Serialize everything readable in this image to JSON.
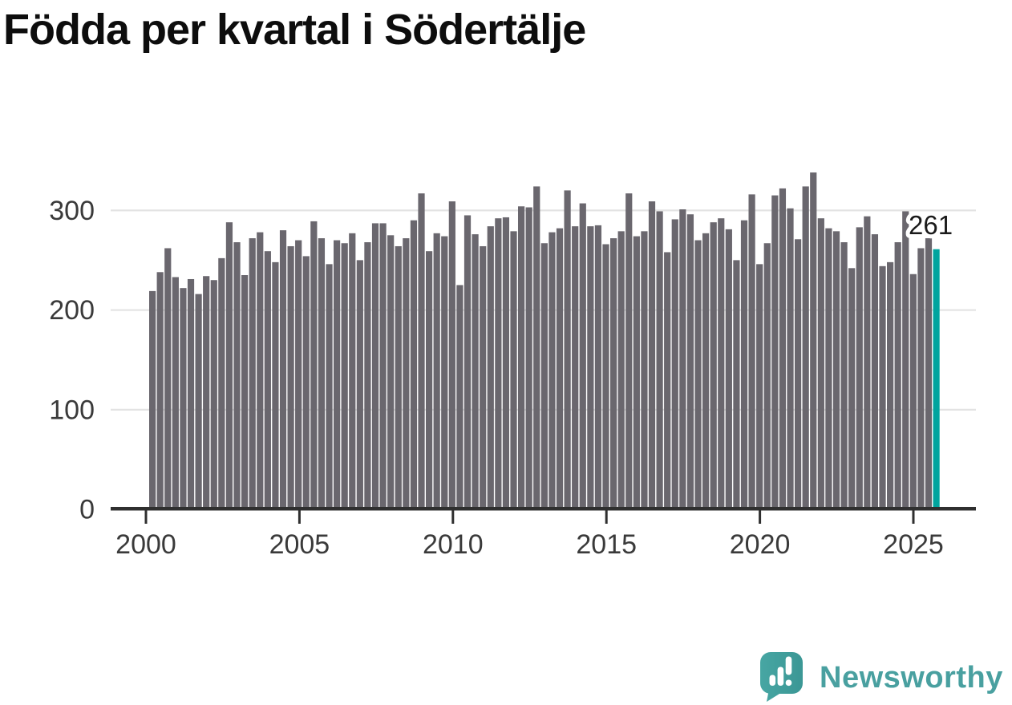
{
  "title": "Födda per kvartal i Södertälje",
  "chart_data": {
    "type": "bar",
    "title": "Födda per kvartal i Södertälje",
    "frequency": "quarterly",
    "x_start": "2000-Q1",
    "x_end": "2025-Q3",
    "values": [
      219,
      238,
      262,
      233,
      222,
      231,
      216,
      234,
      230,
      252,
      288,
      268,
      235,
      272,
      278,
      259,
      248,
      280,
      264,
      270,
      254,
      289,
      272,
      246,
      270,
      267,
      277,
      250,
      268,
      287,
      287,
      275,
      264,
      272,
      290,
      317,
      259,
      277,
      274,
      309,
      225,
      295,
      276,
      264,
      284,
      292,
      293,
      279,
      304,
      303,
      324,
      267,
      278,
      282,
      320,
      284,
      307,
      284,
      285,
      266,
      272,
      279,
      317,
      274,
      279,
      309,
      299,
      258,
      291,
      301,
      296,
      270,
      277,
      288,
      292,
      281,
      250,
      290,
      316,
      246,
      267,
      315,
      322,
      302,
      271,
      324,
      338,
      292,
      282,
      279,
      268,
      242,
      283,
      294,
      276,
      244,
      248,
      268,
      299,
      236,
      262,
      272,
      261
    ],
    "highlight_last": true,
    "highlight_value_label": "261",
    "y_ticks": [
      "0",
      "100",
      "200",
      "300"
    ],
    "x_ticks": [
      "2000",
      "2005",
      "2010",
      "2015",
      "2020",
      "2025"
    ],
    "ylim": [
      0,
      373
    ],
    "grid": "horizontal",
    "legend": "none",
    "bar_color": "#6a676e",
    "highlight_color": "#00a49e",
    "grid_color": "#e3e3e3",
    "axis_color": "#2f2f2f",
    "tick_label_color": "#3a3a3a",
    "annotation_color": "#1a1a1a"
  },
  "logo": {
    "text": "Newsworthy",
    "icon": "speech-bubble-bar-chart-exclamation",
    "color": "#49a0a0",
    "icon_color": "#42a19f"
  }
}
